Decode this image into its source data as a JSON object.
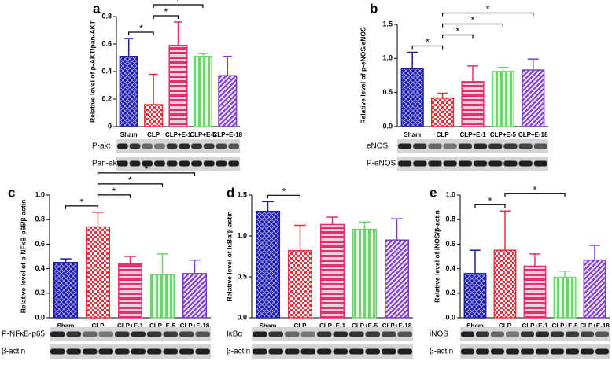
{
  "chart_data": [
    {
      "panel": "a",
      "type": "bar",
      "ylabel": "Relative level of p-AKT/pan-AKT",
      "categories": [
        "Sham",
        "CLP",
        "CLP+E-1",
        "CLP+E-5",
        "CLP+E-18"
      ],
      "values": [
        0.51,
        0.16,
        0.59,
        0.51,
        0.37
      ],
      "errors": [
        0.13,
        0.22,
        0.17,
        0.02,
        0.14
      ],
      "colors": [
        "#1c1c9e",
        "#e5323a",
        "#e0306e",
        "#6fd46f",
        "#7a3cc8"
      ],
      "fills": [
        "crosshatch",
        "checker",
        "hstripe",
        "vstripe",
        "diagonal"
      ],
      "ylim": [
        0,
        0.8
      ],
      "yticks": [
        0,
        0.2,
        0.4,
        0.6,
        0.8
      ],
      "brackets": [
        {
          "between": [
            "Sham",
            "CLP"
          ],
          "label": "*"
        },
        {
          "between": [
            "CLP",
            "CLP+E-1"
          ],
          "label": "*"
        },
        {
          "between": [
            "CLP",
            "CLP+E-5"
          ],
          "label": "*"
        }
      ],
      "blots": [
        "P-akt",
        "Pan-akt"
      ]
    },
    {
      "panel": "b",
      "type": "bar",
      "ylabel": "Relative level of p-eNOS/eNOS",
      "categories": [
        "Sham",
        "CLP",
        "CLP+E-1",
        "CLP+E-5",
        "CLP+E-18"
      ],
      "values": [
        0.85,
        0.42,
        0.66,
        0.81,
        0.83
      ],
      "errors": [
        0.24,
        0.07,
        0.23,
        0.06,
        0.16
      ],
      "colors": [
        "#1c1c9e",
        "#e5323a",
        "#e0306e",
        "#6fd46f",
        "#7a3cc8"
      ],
      "fills": [
        "crosshatch",
        "checker",
        "hstripe",
        "vstripe",
        "diagonal"
      ],
      "ylim": [
        0,
        1.5
      ],
      "yticks": [
        {
          "value": 0,
          "label": "0.0"
        },
        0.5,
        {
          "value": 1,
          "label": "1.0"
        },
        1.5
      ],
      "brackets": [
        {
          "between": [
            "Sham",
            "CLP"
          ],
          "label": "*"
        },
        {
          "between": [
            "CLP",
            "CLP+E-1"
          ],
          "label": "*"
        },
        {
          "between": [
            "CLP",
            "CLP+E-5"
          ],
          "label": "*"
        },
        {
          "between": [
            "CLP",
            "CLP+E-18"
          ],
          "label": "*"
        }
      ],
      "blots": [
        "eNOS",
        "P-eNOS"
      ]
    },
    {
      "panel": "c",
      "type": "bar",
      "ylabel": "Relative level of p-NFκB-p65/β-actin",
      "categories": [
        "Sham",
        "CLP",
        "CLP+E-1",
        "CLP+E-5",
        "CLP+E-18"
      ],
      "values": [
        0.45,
        0.74,
        0.44,
        0.35,
        0.36
      ],
      "errors": [
        0.03,
        0.12,
        0.06,
        0.17,
        0.11
      ],
      "colors": [
        "#1c1c9e",
        "#e5323a",
        "#e0306e",
        "#6fd46f",
        "#7a3cc8"
      ],
      "fills": [
        "crosshatch",
        "checker",
        "hstripe",
        "vstripe",
        "diagonal"
      ],
      "ylim": [
        0,
        1.0
      ],
      "yticks": [
        {
          "value": 0,
          "label": "0.0"
        },
        0.2,
        0.4,
        0.6,
        0.8,
        {
          "value": 1,
          "label": "1.0"
        }
      ],
      "brackets": [
        {
          "between": [
            "Sham",
            "CLP"
          ],
          "label": "*"
        },
        {
          "between": [
            "CLP",
            "CLP+E-1"
          ],
          "label": "*"
        },
        {
          "between": [
            "CLP",
            "CLP+E-5"
          ],
          "label": "*"
        },
        {
          "between": [
            "CLP",
            "CLP+E-18"
          ],
          "label": "*"
        }
      ],
      "blots": [
        "P-NFκB-p65",
        "β-actin"
      ]
    },
    {
      "panel": "d",
      "type": "bar",
      "ylabel": "Relative level of IκBα/β-actin",
      "categories": [
        "Sham",
        "CLP",
        "CLP+E-1",
        "CLP+E-5",
        "CLP+E-18"
      ],
      "values": [
        1.3,
        0.82,
        1.14,
        1.08,
        0.95
      ],
      "errors": [
        0.12,
        0.31,
        0.09,
        0.09,
        0.26
      ],
      "colors": [
        "#1c1c9e",
        "#e5323a",
        "#e0306e",
        "#6fd46f",
        "#7a3cc8"
      ],
      "fills": [
        "crosshatch",
        "checker",
        "hstripe",
        "vstripe",
        "diagonal"
      ],
      "ylim": [
        0,
        1.5
      ],
      "yticks": [
        {
          "value": 0,
          "label": "0.0"
        },
        0.5,
        {
          "value": 1,
          "label": "1.0"
        },
        1.5
      ],
      "brackets": [
        {
          "between": [
            "Sham",
            "CLP"
          ],
          "label": "*"
        }
      ],
      "blots": [
        "IκBα",
        "β-actin"
      ]
    },
    {
      "panel": "e",
      "type": "bar",
      "ylabel": "Relative level of iNOS/β-actin",
      "categories": [
        "Sham",
        "CLP",
        "CLP+E-1",
        "CLP+E-5",
        "CLP+E-18"
      ],
      "values": [
        0.36,
        0.55,
        0.42,
        0.33,
        0.47
      ],
      "errors": [
        0.19,
        0.32,
        0.1,
        0.05,
        0.12
      ],
      "colors": [
        "#1c1c9e",
        "#e5323a",
        "#e0306e",
        "#6fd46f",
        "#7a3cc8"
      ],
      "fills": [
        "crosshatch",
        "checker",
        "hstripe",
        "vstripe",
        "diagonal"
      ],
      "ylim": [
        0,
        1.0
      ],
      "yticks": [
        {
          "value": 0,
          "label": "0.0"
        },
        0.2,
        0.4,
        0.6,
        0.8,
        {
          "value": 1,
          "label": "1.0"
        }
      ],
      "brackets": [
        {
          "between": [
            "Sham",
            "CLP"
          ],
          "label": "*"
        },
        {
          "between": [
            "CLP",
            "CLP+E-5"
          ],
          "label": "*"
        }
      ],
      "blots": [
        "iNOS",
        "β-actin"
      ]
    }
  ]
}
